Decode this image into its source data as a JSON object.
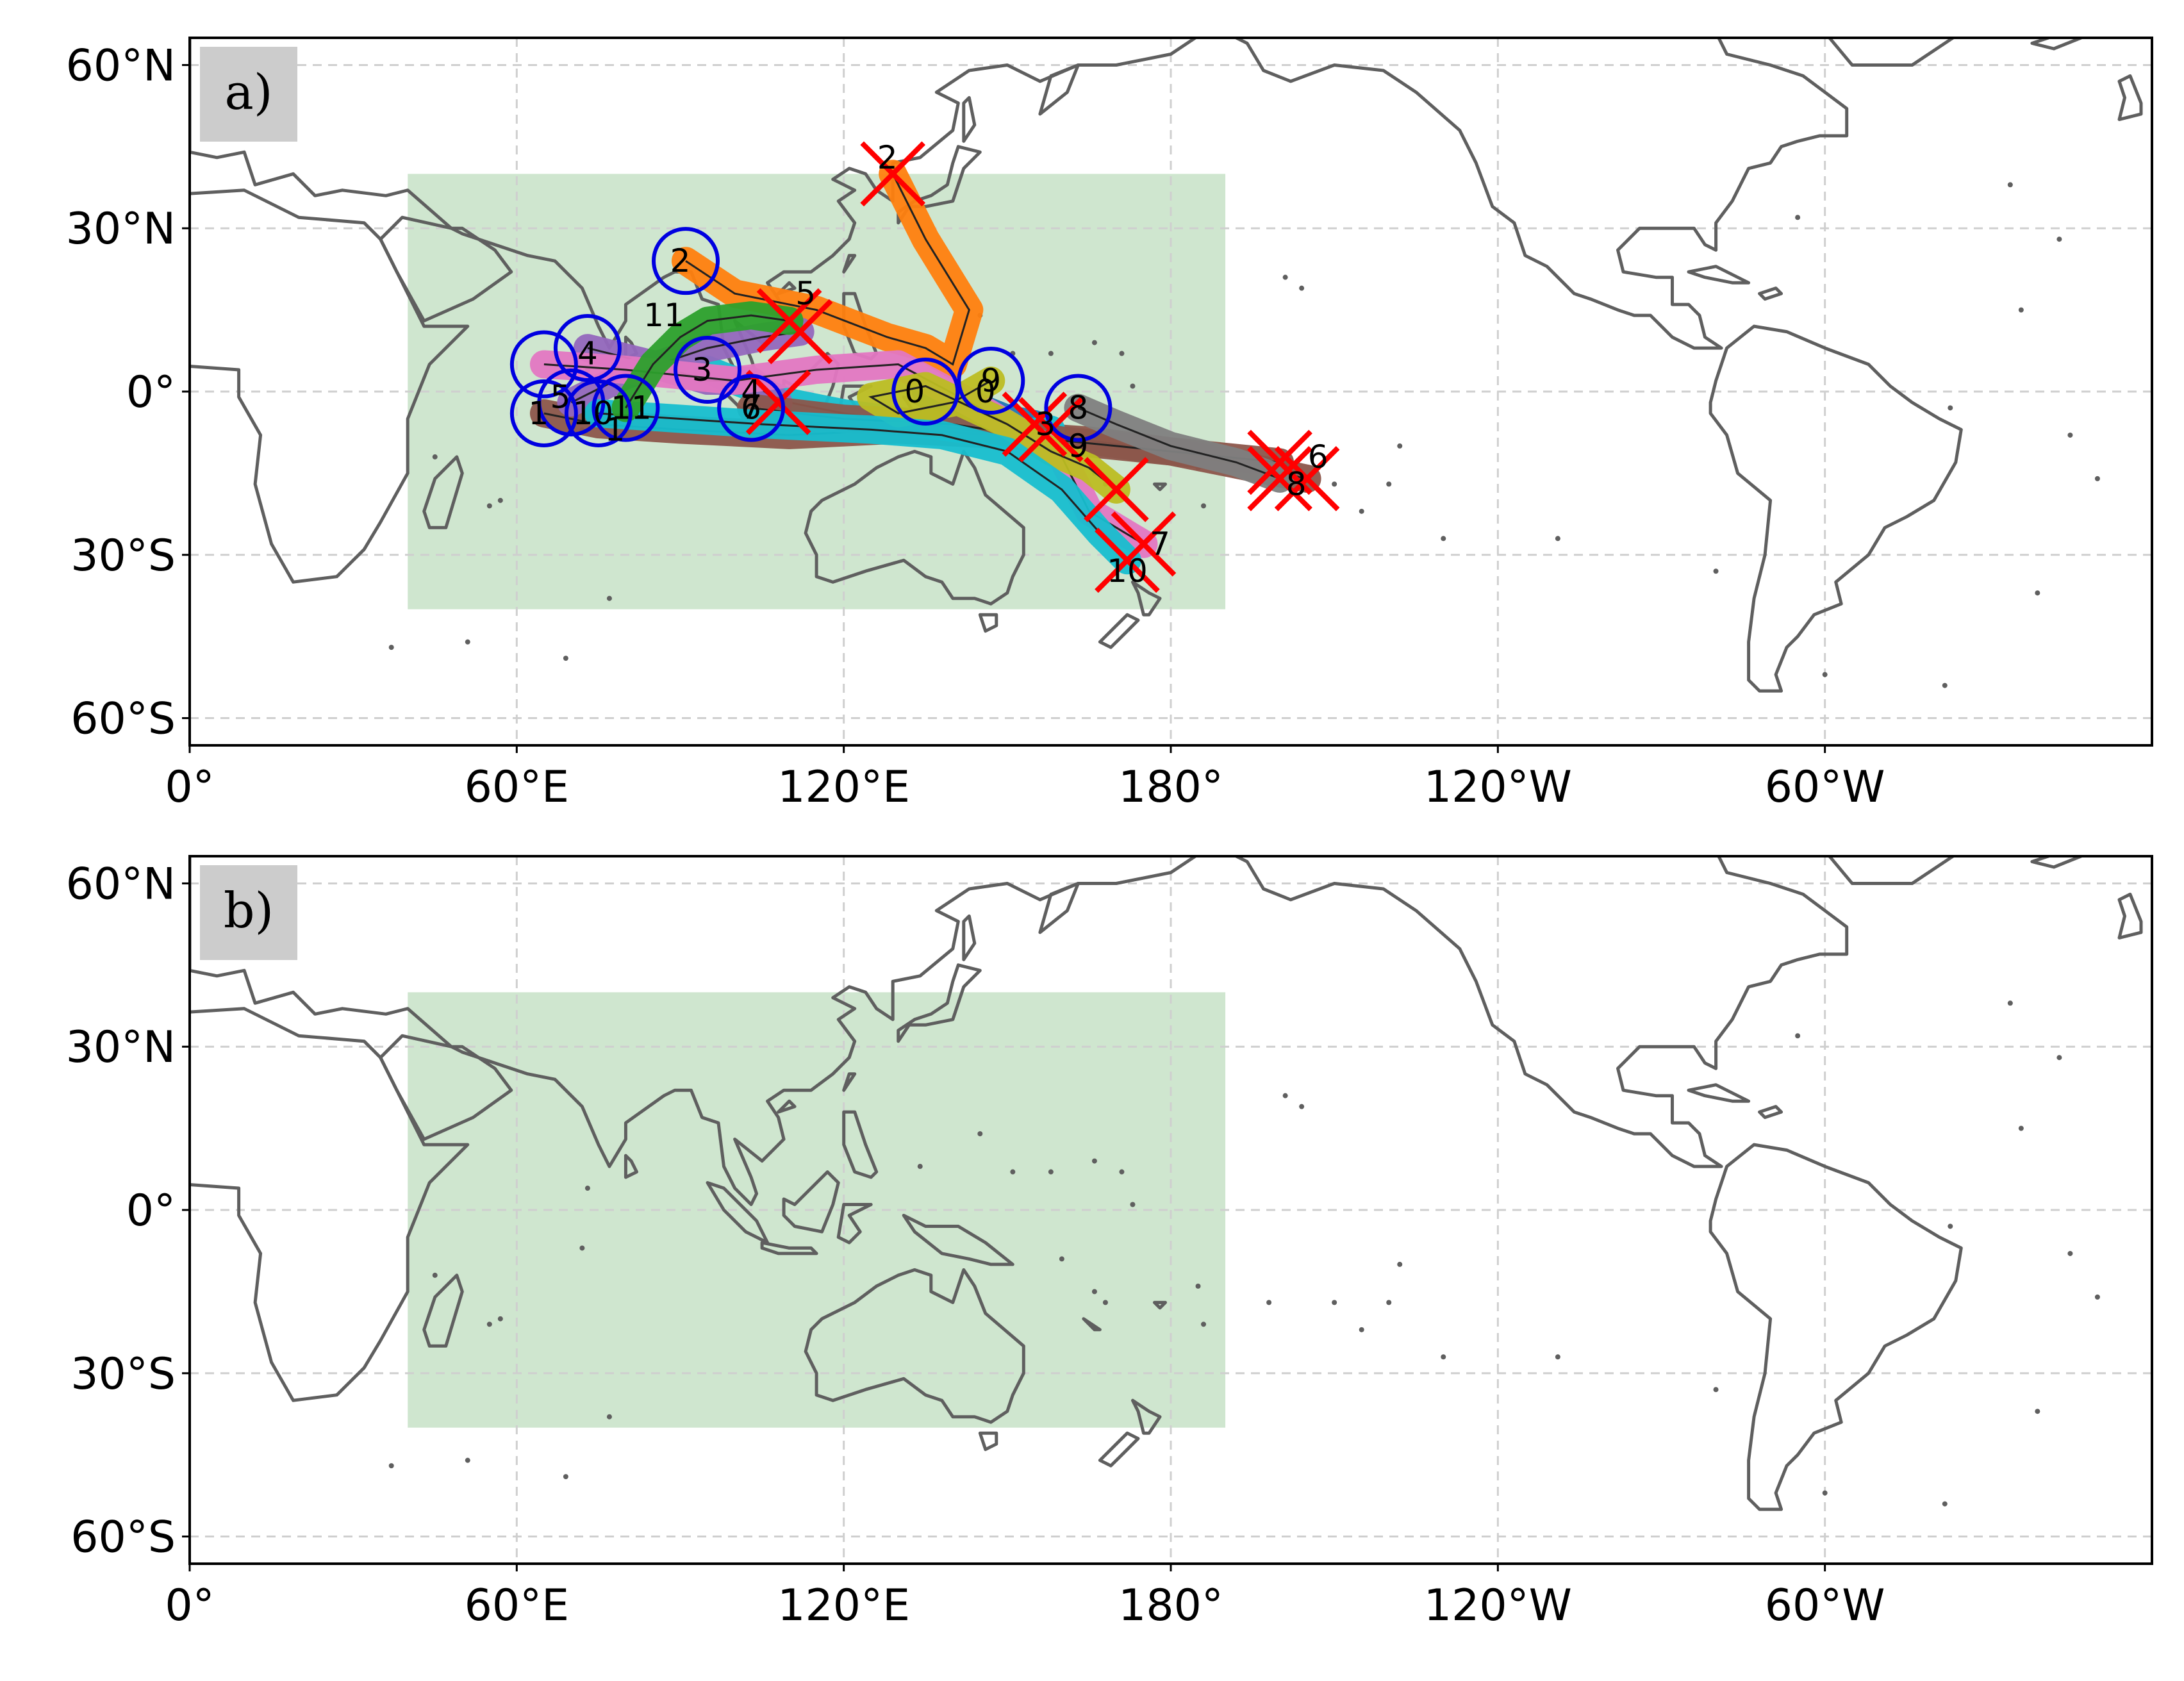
{
  "colors": {
    "coast": "#5f5f5f",
    "grid": "#cfcfcf",
    "region_fill": "#cfe6cf",
    "genesis_circle": "#0000e0",
    "lysis_cross": "#ff0000",
    "label_box": "#cccccc"
  },
  "panels": [
    {
      "label": "a)",
      "xticks": [
        {
          "lon": 0,
          "label": "0°"
        },
        {
          "lon": 60,
          "label": "60°E"
        },
        {
          "lon": 120,
          "label": "120°E"
        },
        {
          "lon": 180,
          "label": "180°"
        },
        {
          "lon": 240,
          "label": "120°W"
        },
        {
          "lon": 300,
          "label": "60°W"
        }
      ],
      "yticks": [
        {
          "lat": 60,
          "label": "60°N"
        },
        {
          "lat": 30,
          "label": "30°N"
        },
        {
          "lat": 0,
          "label": "0°"
        },
        {
          "lat": -30,
          "label": "30°S"
        },
        {
          "lat": -60,
          "label": "60°S"
        }
      ],
      "region": {
        "lon": [
          40,
          190
        ],
        "lat": [
          -40,
          40
        ]
      },
      "show_tracks": true
    },
    {
      "label": "b)",
      "xticks": [
        {
          "lon": 0,
          "label": "0°"
        },
        {
          "lon": 60,
          "label": "60°E"
        },
        {
          "lon": 120,
          "label": "120°E"
        },
        {
          "lon": 180,
          "label": "180°"
        },
        {
          "lon": 240,
          "label": "120°W"
        },
        {
          "lon": 300,
          "label": "60°W"
        }
      ],
      "yticks": [
        {
          "lat": 60,
          "label": "60°N"
        },
        {
          "lat": 30,
          "label": "30°N"
        },
        {
          "lat": 0,
          "label": "0°"
        },
        {
          "lat": -30,
          "label": "30°S"
        },
        {
          "lat": -60,
          "label": "60°S"
        }
      ],
      "region": {
        "lon": [
          40,
          190
        ],
        "lat": [
          -40,
          40
        ]
      },
      "show_tracks": false
    }
  ],
  "map_extent": {
    "lon": [
      0,
      360
    ],
    "lat": [
      -65,
      65
    ]
  },
  "tracks": [
    {
      "id": "0",
      "color": "#1f77b4",
      "points": [
        [
          135,
          0
        ],
        [
          140,
          -2
        ],
        [
          145,
          -3
        ],
        [
          150,
          -5
        ],
        [
          155,
          -6
        ]
      ],
      "start_label_at": [
        133,
        0
      ],
      "end_label_at": [
        146,
        0
      ]
    },
    {
      "id": "1",
      "color": "#8c564b",
      "points": [
        [
          65,
          -4
        ],
        [
          75,
          -6
        ],
        [
          90,
          -7
        ],
        [
          110,
          -8
        ],
        [
          130,
          -7
        ],
        [
          150,
          -8
        ],
        [
          165,
          -9
        ],
        [
          180,
          -11
        ],
        [
          195,
          -14
        ],
        [
          205,
          -16
        ]
      ],
      "start_label_at": [
        64,
        -4
      ],
      "end_label_at": [
        78,
        -7
      ]
    },
    {
      "id": "2",
      "color": "#ff7f0e",
      "points": [
        [
          91,
          24
        ],
        [
          100,
          18
        ],
        [
          115,
          15
        ],
        [
          128,
          10
        ],
        [
          135,
          8
        ],
        [
          140,
          5
        ],
        [
          143,
          15
        ],
        [
          135,
          28
        ],
        [
          129,
          40
        ]
      ],
      "start_label_at": [
        90,
        24
      ],
      "end_label_at": [
        128,
        43
      ]
    },
    {
      "id": "3",
      "color": "#17becf",
      "points": [
        [
          95,
          4
        ],
        [
          100,
          2
        ],
        [
          110,
          -2
        ],
        [
          120,
          -4
        ],
        [
          135,
          -6
        ],
        [
          150,
          -8
        ],
        [
          158,
          -7
        ]
      ],
      "start_label_at": [
        94,
        4
      ],
      "end_label_at": [
        157,
        -6
      ]
    },
    {
      "id": "4",
      "color": "#9467bd",
      "points": [
        [
          73,
          8
        ],
        [
          85,
          5
        ],
        [
          95,
          2
        ],
        [
          103,
          2
        ],
        [
          108,
          -2
        ]
      ],
      "start_label_at": [
        73,
        7
      ],
      "end_label_at": [
        103,
        0
      ]
    },
    {
      "id": "5",
      "color": "#9467bd",
      "points": [
        [
          70,
          -2
        ],
        [
          80,
          3
        ],
        [
          95,
          8
        ],
        [
          105,
          10
        ],
        [
          112,
          11
        ]
      ],
      "start_label_at": [
        68,
        -1
      ],
      "end_label_at": [
        113,
        18
      ]
    },
    {
      "id": "6",
      "color": "#8c564b",
      "points": [
        [
          103,
          -3
        ],
        [
          120,
          -5
        ],
        [
          140,
          -6
        ],
        [
          160,
          -9
        ],
        [
          180,
          -11
        ],
        [
          200,
          -13
        ]
      ],
      "start_label_at": [
        103,
        -3
      ],
      "end_label_at": [
        207,
        -12
      ]
    },
    {
      "id": "7",
      "color": "#e377c2",
      "points": [
        [
          65,
          5
        ],
        [
          80,
          4
        ],
        [
          100,
          2
        ],
        [
          115,
          4
        ],
        [
          130,
          5
        ],
        [
          145,
          -3
        ],
        [
          160,
          -12
        ],
        [
          165,
          -22
        ],
        [
          175,
          -28
        ]
      ],
      "start_label_at": [
        103,
        -3
      ],
      "end_label_at": [
        178,
        -28
      ]
    },
    {
      "id": "8",
      "color": "#7f7f7f",
      "points": [
        [
          163,
          -3
        ],
        [
          170,
          -6
        ],
        [
          180,
          -10
        ],
        [
          192,
          -13
        ],
        [
          200,
          -16
        ]
      ],
      "start_label_at": [
        163,
        -3
      ],
      "end_label_at": [
        203,
        -17
      ]
    },
    {
      "id": "9",
      "color": "#bcbd22",
      "points": [
        [
          147,
          2
        ],
        [
          140,
          -2
        ],
        [
          130,
          -4
        ],
        [
          125,
          -1
        ],
        [
          135,
          1
        ],
        [
          150,
          -6
        ],
        [
          158,
          -11
        ],
        [
          165,
          -14
        ],
        [
          170,
          -18
        ]
      ],
      "start_label_at": [
        147,
        2
      ],
      "end_label_at": [
        163,
        -10
      ]
    },
    {
      "id": "10",
      "color": "#17becf",
      "points": [
        [
          75,
          -4
        ],
        [
          90,
          -5
        ],
        [
          105,
          -6
        ],
        [
          125,
          -7
        ],
        [
          138,
          -8
        ],
        [
          150,
          -11
        ],
        [
          160,
          -18
        ],
        [
          167,
          -26
        ],
        [
          172,
          -31
        ]
      ],
      "start_label_at": [
        74,
        -4
      ],
      "end_label_at": [
        172,
        -33
      ]
    },
    {
      "id": "11",
      "color": "#2ca02c",
      "points": [
        [
          80,
          -3
        ],
        [
          85,
          5
        ],
        [
          90,
          10
        ],
        [
          95,
          13
        ],
        [
          103,
          14
        ],
        [
          110,
          13
        ]
      ],
      "start_label_at": [
        81,
        -3
      ],
      "end_label_at": [
        87,
        14
      ]
    }
  ]
}
